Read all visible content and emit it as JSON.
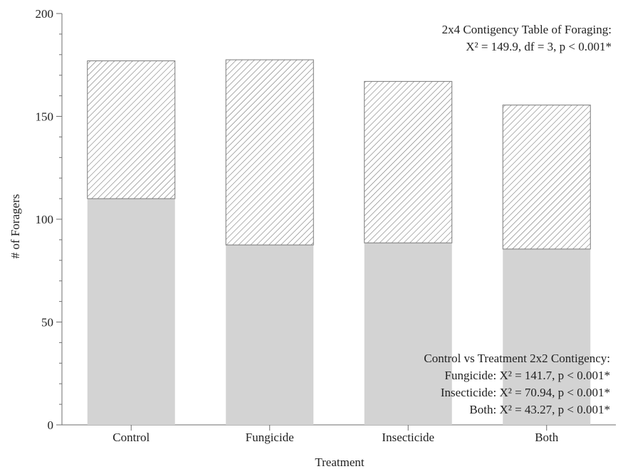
{
  "chart_data": {
    "type": "bar",
    "stacked": true,
    "categories": [
      "Control",
      "Fungicide",
      "Insecticide",
      "Both"
    ],
    "series": [
      {
        "pattern": "solid",
        "values": [
          110,
          87.5,
          88.5,
          85.5
        ]
      },
      {
        "pattern": "hatched",
        "values": [
          67,
          90,
          78.5,
          70
        ]
      }
    ],
    "totals": [
      177,
      177.5,
      167,
      155.5
    ],
    "title": "",
    "xlabel": "Treatment",
    "ylabel": "# of Foragers",
    "ylim": [
      0,
      200
    ],
    "yticks": [
      0,
      50,
      100,
      150,
      200
    ],
    "colors": {
      "solid": "#d3d3d3",
      "hatch_fill": "#ffffff",
      "hatch_line": "#6e6e6e",
      "outline": "#7a7a7a",
      "axis": "#6e6e6e"
    },
    "annotations": {
      "top": {
        "line1": "2x4 Contigency Table of Foraging:",
        "line2": "X² = 149.9, df = 3, p < 0.001*"
      },
      "bottom": {
        "line1": "Control vs Treatment 2x2 Contigency:",
        "line2": "Fungicide: X² = 141.7, p < 0.001*",
        "line3": "Insecticide: X² = 70.94, p < 0.001*",
        "line4": "Both: X² = 43.27, p < 0.001*"
      }
    }
  }
}
